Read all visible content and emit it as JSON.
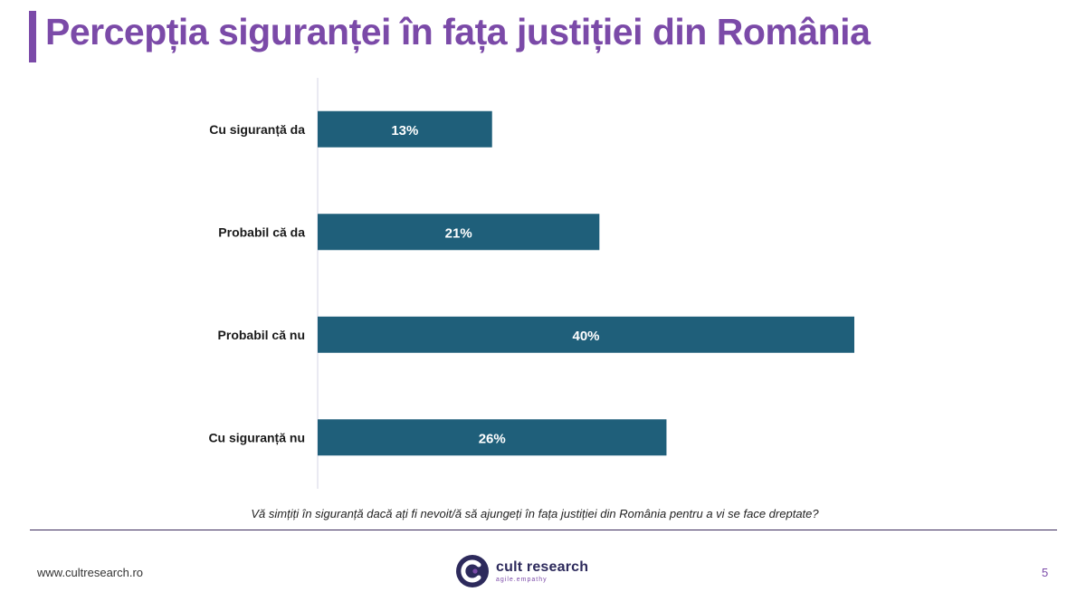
{
  "header": {
    "title": "Percepția siguranței în fața justiției din România"
  },
  "chart_data": {
    "type": "bar",
    "orientation": "horizontal",
    "categories": [
      "Cu siguranță da",
      "Probabil că da",
      "Probabil că nu",
      "Cu siguranță nu"
    ],
    "values": [
      13,
      21,
      40,
      26
    ],
    "value_labels": [
      "13%",
      "21%",
      "40%",
      "26%"
    ],
    "bar_color": "#1f5f7a",
    "xlim": [
      0,
      50
    ]
  },
  "question": "Vă simțiți în siguranță dacă ați fi nevoit/ă să ajungeți în fața justiției din România pentru a vi se face dreptate?",
  "footer": {
    "website": "www.cultresearch.ro",
    "logo_name": "cult research",
    "logo_tagline": "agile.empathy",
    "page_number": "5"
  },
  "colors": {
    "accent": "#7b4aa8",
    "bar": "#1f5f7a"
  }
}
